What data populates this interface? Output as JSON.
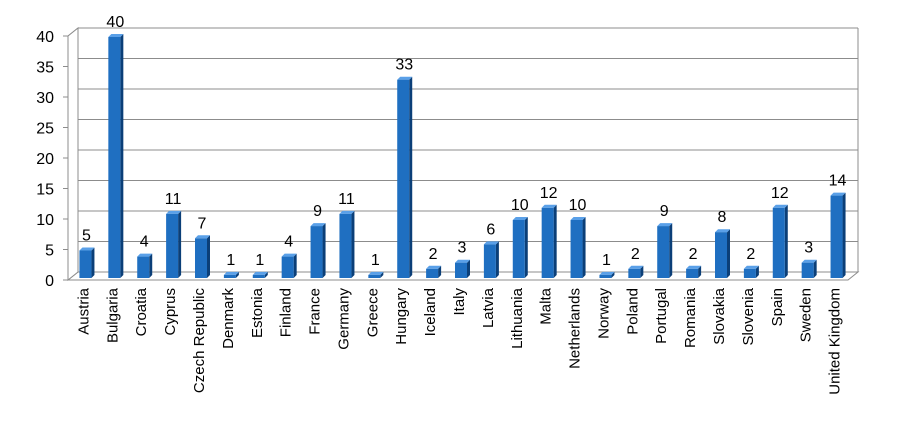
{
  "chart_data": {
    "type": "bar",
    "title": "",
    "xlabel": "",
    "ylabel": "",
    "ylim": [
      0,
      40
    ],
    "yticks": [
      0,
      5,
      10,
      15,
      20,
      25,
      30,
      35,
      40
    ],
    "grid": true,
    "legend": "none",
    "bar_color": "#1f6fc1",
    "bar_side_color": "#0b3f78",
    "bar_top_color": "#5aa0e8",
    "categories": [
      "Austria",
      "Bulgaria",
      "Croatia",
      "Cyprus",
      "Czech Republic",
      "Denmark",
      "Estonia",
      "Finland",
      "France",
      "Germany",
      "Greece",
      "Hungary",
      "Iceland",
      "Italy",
      "Latvia",
      "Lithuania",
      "Malta",
      "Netherlands",
      "Norway",
      "Poland",
      "Portugal",
      "Romania",
      "Slovakia",
      "Slovenia",
      "Spain",
      "Sweden",
      "United Kingdom"
    ],
    "values": [
      5,
      40,
      4,
      11,
      7,
      1,
      1,
      4,
      9,
      11,
      1,
      33,
      2,
      3,
      6,
      10,
      12,
      10,
      1,
      2,
      9,
      2,
      8,
      2,
      12,
      3,
      14
    ]
  }
}
